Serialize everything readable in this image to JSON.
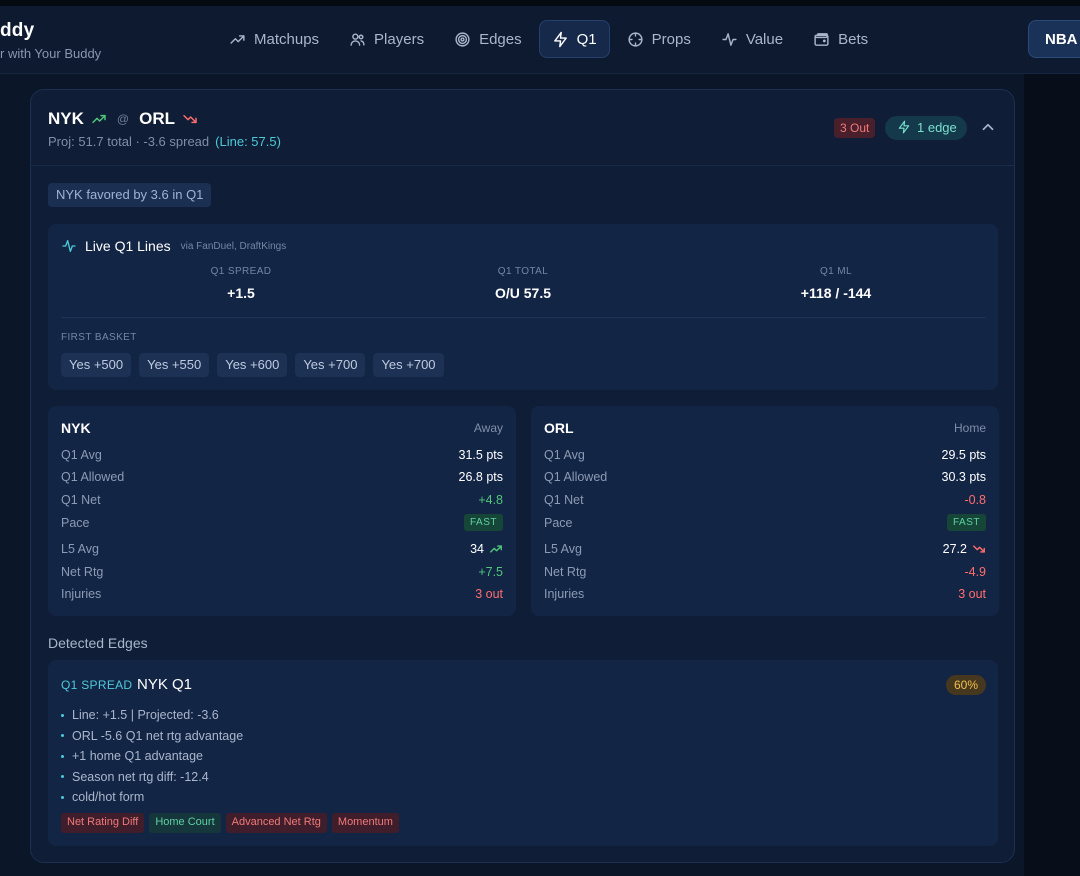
{
  "app": {
    "title": "ddy",
    "subtitle": "r with Your Buddy"
  },
  "nav": {
    "items": [
      {
        "label": "Matchups",
        "icon": "trending-up-icon"
      },
      {
        "label": "Players",
        "icon": "users-icon"
      },
      {
        "label": "Edges",
        "icon": "target-icon"
      },
      {
        "label": "Q1",
        "icon": "lightning-icon",
        "active": true
      },
      {
        "label": "Props",
        "icon": "crosshair-icon"
      },
      {
        "label": "Value",
        "icon": "activity-icon"
      },
      {
        "label": "Bets",
        "icon": "wallet-icon"
      }
    ],
    "league": "NBA"
  },
  "game": {
    "away": "NYK",
    "home": "ORL",
    "at": "@",
    "proj_text": "Proj: 51.7 total · -3.6 spread",
    "line_text": "(Line: 57.5)",
    "out_badge": "3 Out",
    "edge_badge": "1 edge",
    "favored": "NYK favored by 3.6 in Q1"
  },
  "live_lines": {
    "title": "Live Q1 Lines",
    "via": "via FanDuel, DraftKings",
    "cols": [
      {
        "label": "Q1 SPREAD",
        "value": "+1.5"
      },
      {
        "label": "Q1 TOTAL",
        "value": "O/U 57.5"
      },
      {
        "label": "Q1 ML",
        "value": "+118 / -144"
      }
    ],
    "first_basket_label": "FIRST BASKET",
    "first_basket": [
      "Yes +500",
      "Yes +550",
      "Yes +600",
      "Yes +700",
      "Yes +700"
    ]
  },
  "teams": [
    {
      "name": "NYK",
      "side": "Away",
      "rows": {
        "q1_avg": {
          "k": "Q1 Avg",
          "v": "31.5 pts"
        },
        "q1_allowed": {
          "k": "Q1 Allowed",
          "v": "26.8 pts"
        },
        "q1_net": {
          "k": "Q1 Net",
          "v": "+4.8"
        },
        "pace": {
          "k": "Pace",
          "v": "FAST"
        },
        "l5": {
          "k": "L5 Avg",
          "v": "34"
        },
        "net_rtg": {
          "k": "Net Rtg",
          "v": "+7.5"
        },
        "injuries": {
          "k": "Injuries",
          "v": "3 out"
        }
      }
    },
    {
      "name": "ORL",
      "side": "Home",
      "rows": {
        "q1_avg": {
          "k": "Q1 Avg",
          "v": "29.5 pts"
        },
        "q1_allowed": {
          "k": "Q1 Allowed",
          "v": "30.3 pts"
        },
        "q1_net": {
          "k": "Q1 Net",
          "v": "-0.8"
        },
        "pace": {
          "k": "Pace",
          "v": "FAST"
        },
        "l5": {
          "k": "L5 Avg",
          "v": "27.2"
        },
        "net_rtg": {
          "k": "Net Rtg",
          "v": "-4.9"
        },
        "injuries": {
          "k": "Injuries",
          "v": "3 out"
        }
      }
    }
  ],
  "edges": {
    "title": "Detected Edges",
    "items": [
      {
        "type": "Q1 SPREAD",
        "name": "NYK Q1",
        "pct": "60%",
        "bullets": [
          "Line: +1.5 | Projected: -3.6",
          "ORL -5.6 Q1 net rtg advantage",
          "+1 home Q1 advantage",
          "Season net rtg diff: -12.4",
          "cold/hot form"
        ],
        "tags": [
          "Net Rating Diff",
          "Home Court",
          "Advanced Net Rtg",
          "Momentum"
        ]
      }
    ]
  },
  "colors": {
    "background": "#0b1628",
    "card": "#0f1d36",
    "accent": "#4ec9d9",
    "positive": "#4ec77a",
    "negative": "#ff6d6d"
  }
}
